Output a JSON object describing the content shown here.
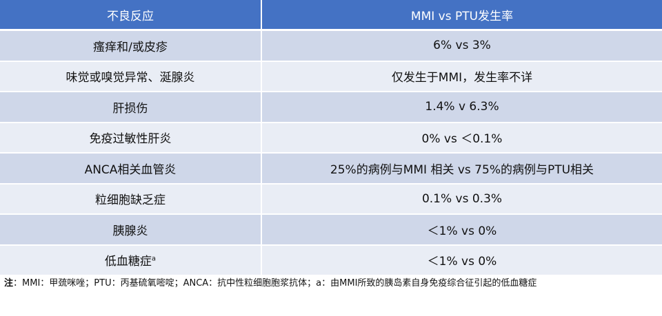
{
  "table": {
    "headers": [
      "不良反应",
      "MMI vs PTU发生率"
    ],
    "rows": [
      {
        "reaction": "瘙痒和/或皮疹",
        "sup": "",
        "rate": "6% vs 3%"
      },
      {
        "reaction": "味觉或嗅觉异常、涎腺炎",
        "sup": "",
        "rate": "仅发生于MMI，发生率不详"
      },
      {
        "reaction": "肝损伤",
        "sup": "",
        "rate": "1.4% v 6.3%"
      },
      {
        "reaction": "免疫过敏性肝炎",
        "sup": "",
        "rate": "0% vs ＜0.1%"
      },
      {
        "reaction": "ANCA相关血管炎",
        "sup": "",
        "rate": "25%的病例与MMI 相关 vs 75%的病例与PTU相关"
      },
      {
        "reaction": "粒细胞缺乏症",
        "sup": "",
        "rate": "0.1% vs 0.3%"
      },
      {
        "reaction": "胰腺炎",
        "sup": "",
        "rate": "＜1% vs 0%"
      },
      {
        "reaction": "低血糖症",
        "sup": "a",
        "rate": "＜1% vs 0%"
      }
    ]
  },
  "note": {
    "label": "注",
    "text": "：MMI：甲巯咪唑；PTU：丙基硫氧嘧啶；ANCA：抗中性粒细胞胞浆抗体；a：由MMI所致的胰岛素自身免疫综合征引起的低血糖症"
  },
  "colors": {
    "header_bg": "#4472c4",
    "row_dark": "#cfd7e9",
    "row_light": "#e9edf5"
  }
}
